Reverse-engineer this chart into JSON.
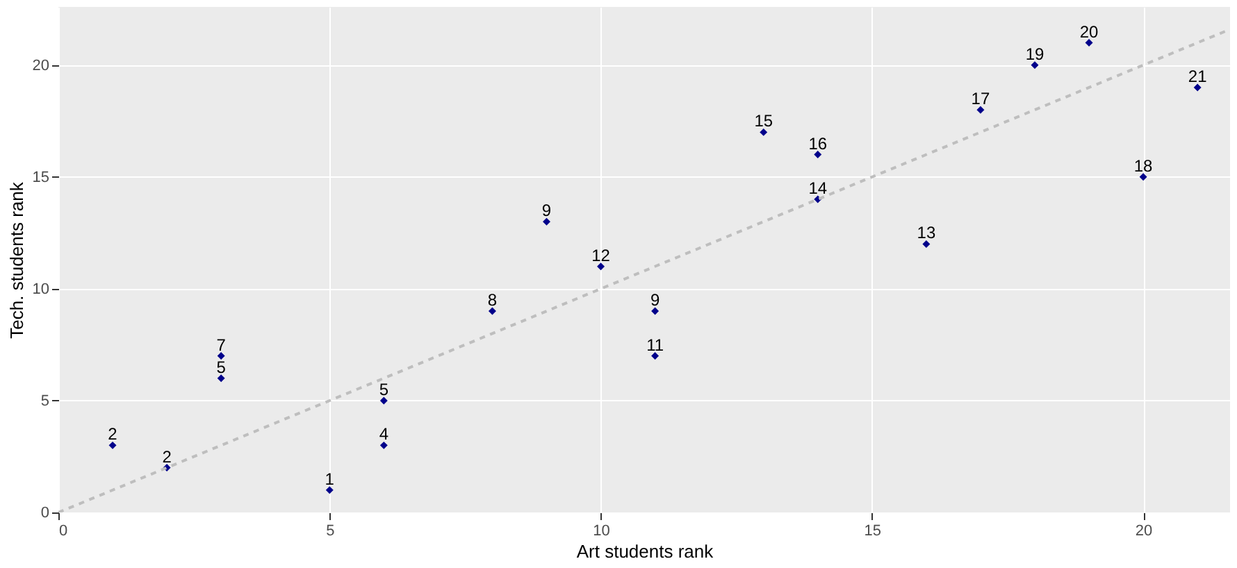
{
  "chart_data": {
    "type": "scatter",
    "xlabel": "Art students rank",
    "ylabel": "Tech. students rank",
    "x": [
      1,
      2,
      3,
      3,
      5,
      6,
      6,
      8,
      9,
      10,
      11,
      11,
      13,
      14,
      14,
      16,
      17,
      18,
      19,
      20,
      21
    ],
    "series": [
      {
        "color": "#00008b",
        "marker": "diamond",
        "values": [
          3,
          2,
          7,
          6,
          1,
          5,
          3,
          9,
          13,
          11,
          9,
          7,
          17,
          16,
          14,
          12,
          18,
          20,
          21,
          15,
          19
        ]
      },
      {
        "type": "line",
        "color": "#bebebe",
        "line_style": "dashed",
        "x": [
          0,
          21.6
        ],
        "values": [
          0,
          21.6
        ]
      }
    ],
    "annotations": [
      {
        "text": "2",
        "x": 1,
        "y": 3
      },
      {
        "text": "2",
        "x": 2,
        "y": 2
      },
      {
        "text": "7",
        "x": 3,
        "y": 7
      },
      {
        "text": "5",
        "x": 3,
        "y": 6
      },
      {
        "text": "1",
        "x": 5,
        "y": 1
      },
      {
        "text": "5",
        "x": 6,
        "y": 5
      },
      {
        "text": "4",
        "x": 6,
        "y": 3
      },
      {
        "text": "8",
        "x": 8,
        "y": 9
      },
      {
        "text": "9",
        "x": 9,
        "y": 13
      },
      {
        "text": "12",
        "x": 10,
        "y": 11
      },
      {
        "text": "9",
        "x": 11,
        "y": 9
      },
      {
        "text": "11",
        "x": 11,
        "y": 7
      },
      {
        "text": "15",
        "x": 13,
        "y": 17
      },
      {
        "text": "16",
        "x": 14,
        "y": 16
      },
      {
        "text": "14",
        "x": 14,
        "y": 14
      },
      {
        "text": "13",
        "x": 16,
        "y": 12
      },
      {
        "text": "17",
        "x": 17,
        "y": 18
      },
      {
        "text": "19",
        "x": 18,
        "y": 20
      },
      {
        "text": "20",
        "x": 19,
        "y": 21
      },
      {
        "text": "18",
        "x": 20,
        "y": 15
      },
      {
        "text": "21",
        "x": 21,
        "y": 19
      }
    ],
    "xlim": [
      0,
      21.6
    ],
    "ylim": [
      0,
      22.6
    ],
    "xticks": [
      0,
      5,
      10,
      15,
      20
    ],
    "yticks": [
      0,
      5,
      10,
      15,
      20
    ],
    "grid": true
  }
}
